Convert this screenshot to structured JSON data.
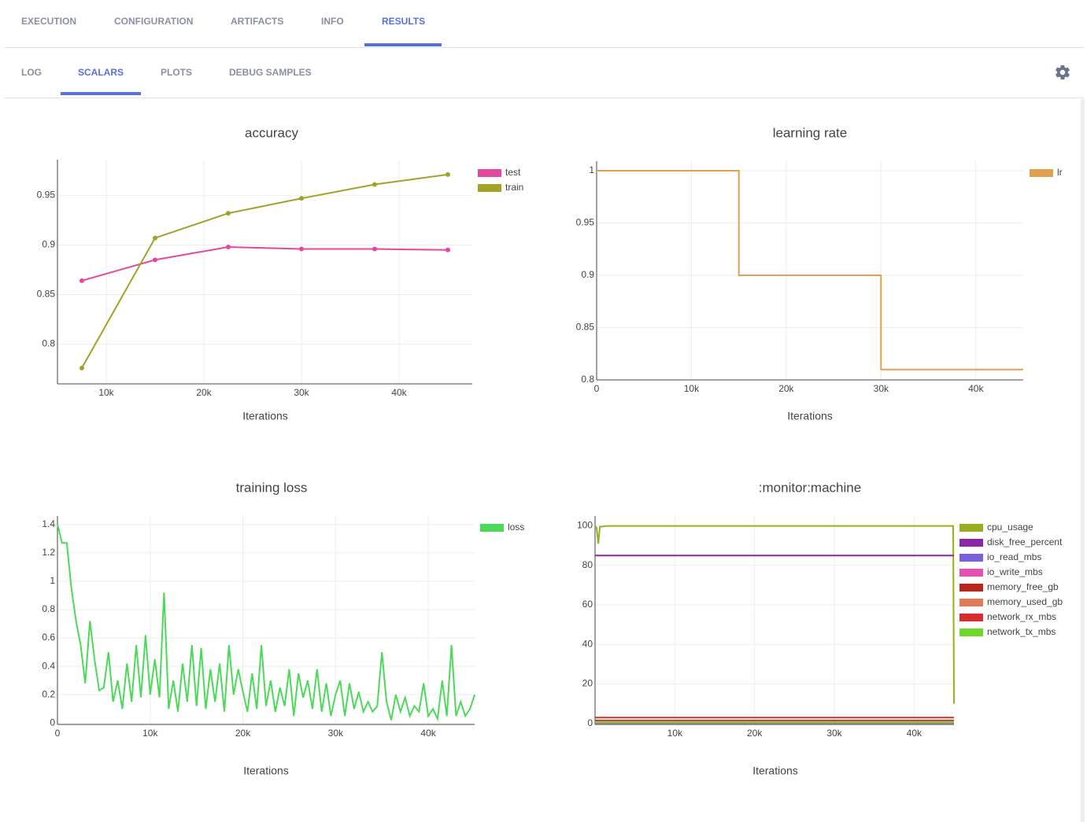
{
  "tabs": {
    "items": [
      "EXECUTION",
      "CONFIGURATION",
      "ARTIFACTS",
      "INFO",
      "RESULTS"
    ],
    "active": 4
  },
  "subtabs": {
    "items": [
      "LOG",
      "SCALARS",
      "PLOTS",
      "DEBUG SAMPLES"
    ],
    "active": 1
  },
  "chart_data": [
    {
      "type": "line",
      "title": "accuracy",
      "x_label": "Iterations",
      "grid": true,
      "markers": true,
      "x": [
        7500,
        15000,
        22500,
        30000,
        37500,
        45000
      ],
      "series": [
        {
          "name": "test",
          "color": "#e2489e",
          "values": [
            0.864,
            0.885,
            0.898,
            0.896,
            0.896,
            0.895
          ]
        },
        {
          "name": "train",
          "color": "#a2a227",
          "values": [
            0.776,
            0.907,
            0.932,
            0.947,
            0.961,
            0.971
          ]
        }
      ],
      "xlim": [
        5000,
        47500
      ],
      "ylim": [
        0.76,
        0.986
      ],
      "xticks": [
        {
          "value": 10000,
          "label": "10k"
        },
        {
          "value": 20000,
          "label": "20k"
        },
        {
          "value": 30000,
          "label": "30k"
        },
        {
          "value": 40000,
          "label": "40k"
        }
      ],
      "yticks": [
        0.8,
        0.85,
        0.9,
        0.95
      ]
    },
    {
      "type": "line",
      "title": "learning rate",
      "x_label": "Iterations",
      "grid": true,
      "markers": false,
      "x": [
        0,
        15000,
        15000,
        30000,
        30000,
        45000
      ],
      "series": [
        {
          "name": "lr",
          "color": "#e0a050",
          "values": [
            1,
            1,
            0.9,
            0.9,
            0.81,
            0.81
          ]
        }
      ],
      "xlim": [
        0,
        45000
      ],
      "ylim": [
        0.8,
        1.009
      ],
      "xticks": [
        0,
        {
          "value": 10000,
          "label": "10k"
        },
        {
          "value": 20000,
          "label": "20k"
        },
        {
          "value": 30000,
          "label": "30k"
        },
        {
          "value": 40000,
          "label": "40k"
        }
      ],
      "yticks": [
        0.8,
        0.85,
        0.9,
        0.95,
        1
      ]
    },
    {
      "type": "line",
      "title": "training loss",
      "x_label": "Iterations",
      "grid": true,
      "markers": false,
      "x": [
        0,
        500,
        1000,
        1500,
        2000,
        2500,
        3000,
        3500,
        4000,
        4500,
        5000,
        5500,
        6000,
        6500,
        7000,
        7500,
        8000,
        8500,
        9000,
        9500,
        10000,
        10500,
        11000,
        11500,
        12000,
        12500,
        13000,
        13500,
        14000,
        14500,
        15000,
        15500,
        16000,
        16500,
        17000,
        17500,
        18000,
        18500,
        19000,
        19500,
        20000,
        20500,
        21000,
        21500,
        22000,
        22500,
        23000,
        23500,
        24000,
        24500,
        25000,
        25500,
        26000,
        26500,
        27000,
        27500,
        28000,
        28500,
        29000,
        29500,
        30000,
        30500,
        31000,
        31500,
        32000,
        32500,
        33000,
        33500,
        34000,
        34500,
        35000,
        35500,
        36000,
        36500,
        37000,
        37500,
        38000,
        38500,
        39000,
        39500,
        40000,
        40500,
        41000,
        41500,
        42000,
        42500,
        43000,
        43500,
        44000,
        44500,
        45000
      ],
      "series": [
        {
          "name": "loss",
          "color": "#4cd95a",
          "values": [
            1.4,
            1.27,
            1.27,
            0.95,
            0.72,
            0.55,
            0.28,
            0.72,
            0.45,
            0.23,
            0.25,
            0.5,
            0.15,
            0.3,
            0.1,
            0.42,
            0.15,
            0.55,
            0.18,
            0.62,
            0.2,
            0.45,
            0.18,
            0.92,
            0.1,
            0.3,
            0.08,
            0.42,
            0.15,
            0.55,
            0.12,
            0.53,
            0.1,
            0.38,
            0.15,
            0.42,
            0.08,
            0.55,
            0.2,
            0.38,
            0.22,
            0.08,
            0.35,
            0.1,
            0.55,
            0.12,
            0.3,
            0.08,
            0.25,
            0.12,
            0.38,
            0.05,
            0.35,
            0.18,
            0.3,
            0.1,
            0.38,
            0.08,
            0.28,
            0.05,
            0.2,
            0.3,
            0.05,
            0.28,
            0.1,
            0.22,
            0.08,
            0.15,
            0.08,
            0.12,
            0.5,
            0.15,
            0.02,
            0.2,
            0.08,
            0.18,
            0.05,
            0.12,
            0.08,
            0.28,
            0.05,
            0.1,
            0.03,
            0.3,
            0.05,
            0.55,
            0.05,
            0.15,
            0.05,
            0.1,
            0.2
          ]
        }
      ],
      "xlim": [
        0,
        45000
      ],
      "ylim": [
        -0.01,
        1.46
      ],
      "xticks": [
        0,
        {
          "value": 10000,
          "label": "10k"
        },
        {
          "value": 20000,
          "label": "20k"
        },
        {
          "value": 30000,
          "label": "30k"
        },
        {
          "value": 40000,
          "label": "40k"
        }
      ],
      "yticks": [
        0,
        0.2,
        0.4,
        0.6,
        0.8,
        1,
        1.2,
        1.4
      ]
    },
    {
      "type": "line",
      "title": ":monitor:machine",
      "x_label": "Iterations",
      "grid": true,
      "markers": false,
      "series": [
        {
          "name": "cpu_usage",
          "color": "#9aad1f",
          "x": [
            0,
            200,
            400,
            600,
            1500,
            44900,
            45000
          ],
          "values": [
            100,
            99,
            91,
            99.5,
            100,
            100,
            10
          ]
        },
        {
          "name": "disk_free_percent",
          "color": "#8e24aa",
          "x": [
            0,
            45000
          ],
          "values": [
            85,
            85
          ]
        },
        {
          "name": "io_read_mbs",
          "color": "#7b5fd6",
          "x": [
            0,
            45000
          ],
          "values": [
            0.2,
            0.2
          ]
        },
        {
          "name": "io_write_mbs",
          "color": "#e94fb5",
          "x": [
            0,
            45000
          ],
          "values": [
            0.4,
            0.4
          ]
        },
        {
          "name": "memory_free_gb",
          "color": "#b7261c",
          "x": [
            0,
            45000
          ],
          "values": [
            1.5,
            1.5
          ]
        },
        {
          "name": "memory_used_gb",
          "color": "#e07b55",
          "x": [
            0,
            45000
          ],
          "values": [
            1,
            1
          ]
        },
        {
          "name": "network_rx_mbs",
          "color": "#d92c2c",
          "x": [
            0,
            45000
          ],
          "values": [
            3,
            3
          ]
        },
        {
          "name": "network_tx_mbs",
          "color": "#6fd82a",
          "x": [
            0,
            45000
          ],
          "values": [
            0.6,
            0.6
          ]
        }
      ],
      "xlim": [
        0,
        45000
      ],
      "ylim": [
        -0.5,
        105
      ],
      "xticks": [
        {
          "value": 10000,
          "label": "10k"
        },
        {
          "value": 20000,
          "label": "20k"
        },
        {
          "value": 30000,
          "label": "30k"
        },
        {
          "value": 40000,
          "label": "40k"
        }
      ],
      "yticks": [
        0,
        20,
        40,
        60,
        80,
        100
      ]
    }
  ]
}
